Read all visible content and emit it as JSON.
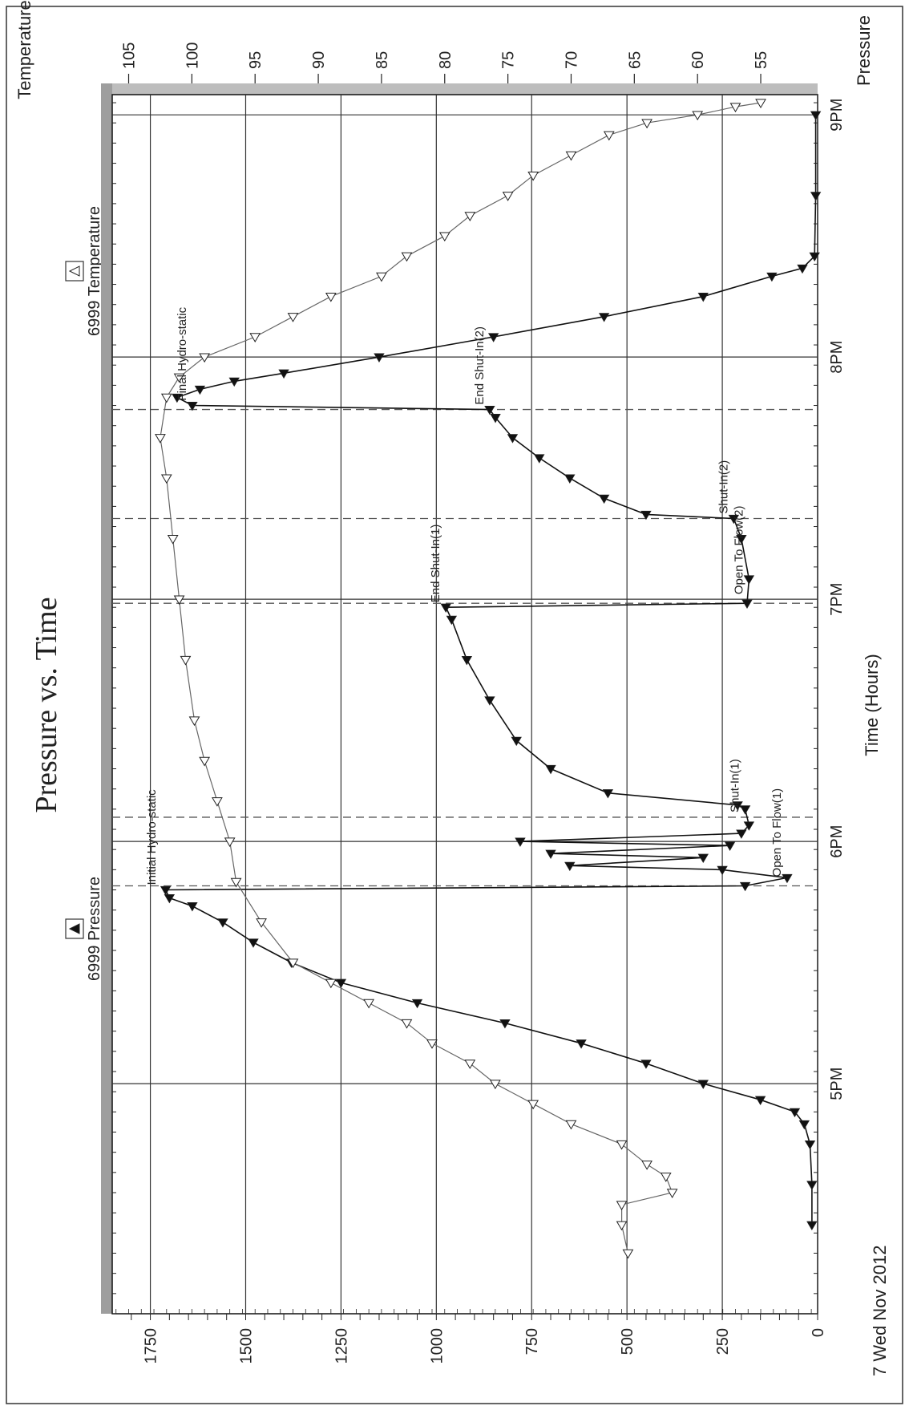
{
  "chart_data": {
    "type": "line",
    "title": "Pressure vs. Time",
    "xlabel": "Time (Hours)",
    "ylabel_left": "Pressure",
    "ylabel_right": "Temperature",
    "date_label": "7 Wed Nov 2012",
    "x_ticks": [
      "5PM",
      "6PM",
      "7PM",
      "8PM",
      "9PM"
    ],
    "x_range": [
      "16:03",
      "21:05"
    ],
    "pressure_ticks": [
      0,
      250,
      500,
      750,
      1000,
      1250,
      1500,
      1750
    ],
    "pressure_range": [
      0,
      1850
    ],
    "temperature_ticks": [
      55,
      60,
      65,
      70,
      75,
      80,
      85,
      90,
      95,
      100,
      105
    ],
    "temperature_range": [
      50.5,
      106.3
    ],
    "grid": true,
    "legend": [
      {
        "label": "6999 Pressure",
        "marker": "filled-triangle"
      },
      {
        "label": "6999 Temperature",
        "marker": "open-triangle"
      }
    ],
    "series": [
      {
        "name": "6999 Pressure",
        "axis": "left",
        "marker": "filled-triangle",
        "points": [
          [
            "16:25",
            15
          ],
          [
            "16:35",
            15
          ],
          [
            "16:45",
            20
          ],
          [
            "16:50",
            35
          ],
          [
            "16:53",
            60
          ],
          [
            "16:56",
            150
          ],
          [
            "17:00",
            300
          ],
          [
            "17:05",
            450
          ],
          [
            "17:10",
            620
          ],
          [
            "17:15",
            820
          ],
          [
            "17:20",
            1050
          ],
          [
            "17:25",
            1250
          ],
          [
            "17:30",
            1380
          ],
          [
            "17:35",
            1480
          ],
          [
            "17:40",
            1560
          ],
          [
            "17:44",
            1640
          ],
          [
            "17:46",
            1700
          ],
          [
            "17:48",
            1710
          ],
          [
            "17:49",
            190
          ],
          [
            "17:51",
            80
          ],
          [
            "17:53",
            250
          ],
          [
            "17:54",
            650
          ],
          [
            "17:56",
            300
          ],
          [
            "17:57",
            700
          ],
          [
            "17:59",
            230
          ],
          [
            "18:00",
            780
          ],
          [
            "18:02",
            200
          ],
          [
            "18:04",
            180
          ],
          [
            "18:08",
            190
          ],
          [
            "18:09",
            210
          ],
          [
            "18:12",
            550
          ],
          [
            "18:18",
            700
          ],
          [
            "18:25",
            790
          ],
          [
            "18:35",
            860
          ],
          [
            "18:45",
            920
          ],
          [
            "18:55",
            960
          ],
          [
            "18:58",
            975
          ],
          [
            "18:59",
            185
          ],
          [
            "19:05",
            180
          ],
          [
            "19:15",
            200
          ],
          [
            "19:20",
            220
          ],
          [
            "19:21",
            450
          ],
          [
            "19:25",
            560
          ],
          [
            "19:30",
            650
          ],
          [
            "19:35",
            730
          ],
          [
            "19:40",
            800
          ],
          [
            "19:45",
            845
          ],
          [
            "19:47",
            860
          ],
          [
            "19:48",
            1640
          ],
          [
            "19:50",
            1680
          ],
          [
            "19:52",
            1620
          ],
          [
            "19:54",
            1530
          ],
          [
            "19:56",
            1400
          ],
          [
            "20:00",
            1150
          ],
          [
            "20:05",
            850
          ],
          [
            "20:10",
            560
          ],
          [
            "20:15",
            300
          ],
          [
            "20:20",
            120
          ],
          [
            "20:22",
            40
          ],
          [
            "20:25",
            8
          ],
          [
            "20:40",
            5
          ],
          [
            "21:00",
            5
          ]
        ]
      },
      {
        "name": "6999 Temperature",
        "axis": "right",
        "marker": "open-triangle",
        "points": [
          [
            "16:18",
            65.5
          ],
          [
            "16:25",
            66
          ],
          [
            "16:30",
            66
          ],
          [
            "16:33",
            62
          ],
          [
            "16:37",
            62.5
          ],
          [
            "16:40",
            64
          ],
          [
            "16:45",
            66
          ],
          [
            "16:50",
            70
          ],
          [
            "16:55",
            73
          ],
          [
            "17:00",
            76
          ],
          [
            "17:05",
            78
          ],
          [
            "17:10",
            81
          ],
          [
            "17:15",
            83
          ],
          [
            "17:20",
            86
          ],
          [
            "17:25",
            89
          ],
          [
            "17:30",
            92
          ],
          [
            "17:40",
            94.5
          ],
          [
            "17:50",
            96.5
          ],
          [
            "18:00",
            97
          ],
          [
            "18:10",
            98
          ],
          [
            "18:20",
            99
          ],
          [
            "18:30",
            99.8
          ],
          [
            "18:45",
            100.5
          ],
          [
            "19:00",
            101
          ],
          [
            "19:15",
            101.5
          ],
          [
            "19:30",
            102
          ],
          [
            "19:40",
            102.5
          ],
          [
            "19:50",
            102
          ],
          [
            "19:55",
            101
          ],
          [
            "20:00",
            99
          ],
          [
            "20:05",
            95
          ],
          [
            "20:10",
            92
          ],
          [
            "20:15",
            89
          ],
          [
            "20:20",
            85
          ],
          [
            "20:25",
            83
          ],
          [
            "20:30",
            80
          ],
          [
            "20:35",
            78
          ],
          [
            "20:40",
            75
          ],
          [
            "20:45",
            73
          ],
          [
            "20:50",
            70
          ],
          [
            "20:55",
            67
          ],
          [
            "20:58",
            64
          ],
          [
            "21:00",
            60
          ],
          [
            "21:02",
            57
          ],
          [
            "21:03",
            55
          ]
        ]
      }
    ],
    "event_lines": [
      "17:49",
      "18:06",
      "18:59",
      "19:20",
      "19:47"
    ],
    "annotations": [
      {
        "text": "Initial Hydro-static",
        "x": "17:48",
        "axis": "left",
        "y": 1720
      },
      {
        "text": "Open To Flow(1)",
        "x": "17:50",
        "axis": "left",
        "y": 80
      },
      {
        "text": "Shut-In(1)",
        "x": "18:06",
        "axis": "left",
        "y": 190
      },
      {
        "text": "End Shut-In(1)",
        "x": "18:58",
        "axis": "left",
        "y": 975
      },
      {
        "text": "Open To Flow(2)",
        "x": "19:00",
        "axis": "left",
        "y": 180
      },
      {
        "text": "Shut-In(2)",
        "x": "19:20",
        "axis": "left",
        "y": 220
      },
      {
        "text": "End Shut-In(2)",
        "x": "19:47",
        "axis": "left",
        "y": 860
      },
      {
        "text": "Final Hydro-static",
        "x": "19:48",
        "axis": "left",
        "y": 1640
      }
    ]
  }
}
